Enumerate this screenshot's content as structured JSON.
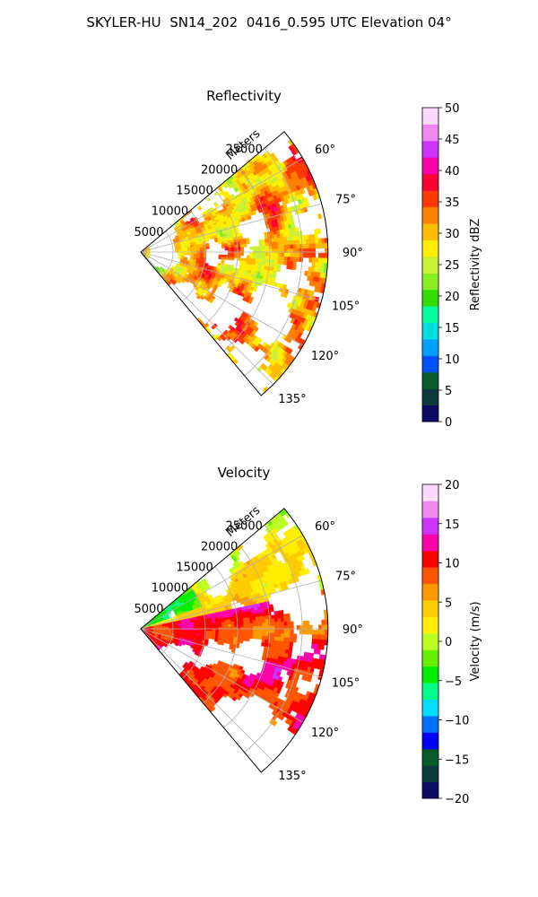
{
  "figure": {
    "suptitle": "SKYLER-HU  SN14_202  0416_0.595 UTC Elevation 04°"
  },
  "chart_data": [
    {
      "type": "heatmap",
      "projection": "polar-sector",
      "title": "Reflectivity",
      "range_label": "Meters",
      "range_ticks": [
        "5000",
        "10000",
        "15000",
        "20000",
        "25000"
      ],
      "range_tick_values": [
        5000,
        10000,
        15000,
        20000,
        25000
      ],
      "range_max": 29000,
      "azimuth_ticks": [
        "60°",
        "75°",
        "90°",
        "105°",
        "120°",
        "135°"
      ],
      "azimuth_tick_values": [
        60,
        75,
        90,
        105,
        120,
        135
      ],
      "azimuth_range": [
        50,
        140
      ],
      "grid": true,
      "colorbar": {
        "label": "Reflectivity dBZ",
        "vmin": 0,
        "vmax": 50,
        "ticks": [
          "0",
          "5",
          "10",
          "15",
          "20",
          "25",
          "30",
          "35",
          "40",
          "45",
          "50"
        ],
        "tick_values": [
          0,
          5,
          10,
          15,
          20,
          25,
          30,
          35,
          40,
          45,
          50
        ]
      },
      "colorscale": [
        "#0c0c66",
        "#0d3a3a",
        "#0a5a2a",
        "#0050ff",
        "#00a0ff",
        "#00e0e0",
        "#00ffa0",
        "#33dd00",
        "#88ee22",
        "#ccf033",
        "#ffee00",
        "#ffbb00",
        "#ff8000",
        "#ff3a00",
        "#ff0033",
        "#ff00aa",
        "#cc33ff",
        "#ee88ee",
        "#ffd8ff"
      ]
    },
    {
      "type": "heatmap",
      "projection": "polar-sector",
      "title": "Velocity",
      "range_label": "Meters",
      "range_ticks": [
        "5000",
        "10000",
        "15000",
        "20000",
        "25000"
      ],
      "range_tick_values": [
        5000,
        10000,
        15000,
        20000,
        25000
      ],
      "range_max": 29000,
      "azimuth_ticks": [
        "60°",
        "75°",
        "90°",
        "105°",
        "120°",
        "135°"
      ],
      "azimuth_tick_values": [
        60,
        75,
        90,
        105,
        120,
        135
      ],
      "azimuth_range": [
        50,
        140
      ],
      "grid": true,
      "colorbar": {
        "label": "Velocity (m/s)",
        "vmin": -20,
        "vmax": 20,
        "ticks": [
          "−20",
          "−15",
          "−10",
          "−5",
          "0",
          "5",
          "10",
          "15",
          "20"
        ],
        "tick_values": [
          -20,
          -15,
          -10,
          -5,
          0,
          5,
          10,
          15,
          20
        ]
      },
      "colorscale": [
        "#0c0c66",
        "#0d3a3a",
        "#0a5a2a",
        "#0000ff",
        "#0070ff",
        "#00ddff",
        "#00ff88",
        "#00ee00",
        "#66ee00",
        "#bbff22",
        "#ffee00",
        "#ffcc00",
        "#ff9900",
        "#ff5500",
        "#ff0000",
        "#ff00aa",
        "#cc33ff",
        "#ee88ee",
        "#ffd8ff"
      ]
    }
  ]
}
